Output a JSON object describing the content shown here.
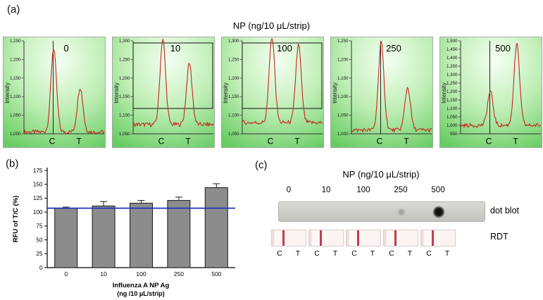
{
  "labels": {
    "a": "(a)",
    "b": "(b)",
    "c": "(c)",
    "dot_blot": "dot blot",
    "rdt": "RDT"
  },
  "chart_data": [
    {
      "type": "line",
      "id": "intensity-scans",
      "title": "NP (ng/10 μL/strip)",
      "ylabel": "Intensity",
      "x_band_labels": [
        "C",
        "T"
      ],
      "subplots": [
        {
          "label": "0",
          "ylim": [
            1000,
            1250
          ],
          "tick_step": 50,
          "baseline": 1005,
          "c_peak": 1230,
          "t_peak": 1125,
          "marker": "cursor"
        },
        {
          "label": "10",
          "ylim": [
            1050,
            1300
          ],
          "tick_step": 50,
          "baseline": 1075,
          "c_peak": 1305,
          "t_peak": 1240,
          "marker": "box"
        },
        {
          "label": "100",
          "ylim": [
            1050,
            1300
          ],
          "tick_step": 50,
          "baseline": 1080,
          "c_peak": 1315,
          "t_peak": 1290,
          "marker": "box"
        },
        {
          "label": "250",
          "ylim": [
            1000,
            1250
          ],
          "tick_step": 50,
          "baseline": 1010,
          "c_peak": 1245,
          "t_peak": 1125,
          "marker": "cursor"
        },
        {
          "label": "500",
          "ylim": [
            950,
            1500
          ],
          "tick_step": 50,
          "baseline": 1000,
          "c_peak": 1200,
          "t_peak": 1480,
          "marker": "cursor"
        }
      ]
    },
    {
      "type": "bar",
      "id": "rfu-bar-chart",
      "categories": [
        "0",
        "10",
        "100",
        "250",
        "500"
      ],
      "values": [
        107,
        111,
        116,
        121,
        144
      ],
      "errors": [
        2,
        8,
        5,
        6,
        7
      ],
      "reference_line": 107,
      "reference_line_color": "#2233bb",
      "bar_color": "#8c8c8c",
      "ylabel": "RFU of T/C (%)",
      "xlabel_line1": "Influenza A NP Ag",
      "xlabel_line2": "(ng /10 μL/strip)",
      "ylim": [
        0,
        175
      ],
      "ytick_step": 25
    },
    {
      "type": "dot-blot",
      "id": "dot-blot-rdt",
      "title": "NP (ng/10 μL/strip)",
      "concentrations": [
        "0",
        "10",
        "100",
        "250",
        "500"
      ],
      "dot_intensities": [
        0,
        0,
        0,
        0.25,
        1
      ],
      "strip_labels": [
        "C",
        "T"
      ]
    }
  ]
}
